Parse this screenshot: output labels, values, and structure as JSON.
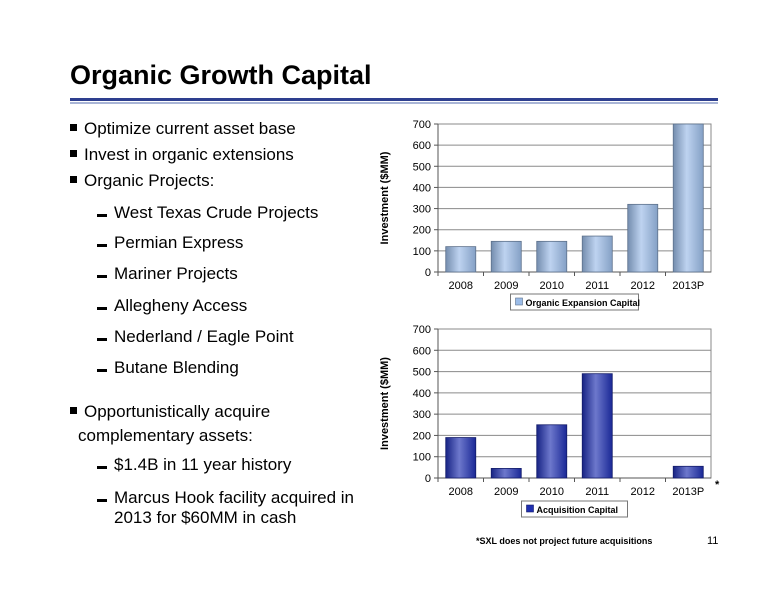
{
  "slide": {
    "title": "Organic Growth Capital",
    "page_number": "11",
    "footnote": "*SXL does not project future acquisitions"
  },
  "bullets": {
    "optimize": "Optimize current asset base",
    "invest": "Invest in organic extensions",
    "projects": "Organic Projects:",
    "projects_list": [
      "West Texas Crude Projects",
      "Permian Express",
      "Mariner Projects",
      "Allegheny Access",
      "Nederland / Eagle Point",
      "Butane Blending"
    ],
    "acquire_line1": "Opportunistically acquire",
    "acquire_line2": "complementary assets:",
    "history": "$1.4B in 11 year history",
    "marcus_line1": "Marcus Hook facility acquired in",
    "marcus_line2": "2013 for $60MM in cash"
  },
  "chart_data": [
    {
      "type": "bar",
      "categories": [
        "2008",
        "2009",
        "2010",
        "2011",
        "2012",
        "2013P"
      ],
      "series": [
        {
          "name": "Organic Expansion Capital",
          "values": [
            120,
            145,
            145,
            170,
            320,
            700
          ]
        }
      ],
      "ylabel": "Investment ($MM)",
      "ylim": [
        0,
        700
      ],
      "yticks": [
        "0",
        "100",
        "200",
        "300",
        "400",
        "500",
        "600",
        "700"
      ],
      "grid": true,
      "legend": "bottom",
      "color": "#9bbce8"
    },
    {
      "type": "bar",
      "categories": [
        "2008",
        "2009",
        "2010",
        "2011",
        "2012",
        "2013P"
      ],
      "series": [
        {
          "name": "Acquisition Capital",
          "values": [
            190,
            45,
            250,
            490,
            0,
            55
          ]
        }
      ],
      "ylabel": "Investment ($MM)",
      "ylim": [
        0,
        700
      ],
      "yticks": [
        "0",
        "100",
        "200",
        "300",
        "400",
        "500",
        "600",
        "700"
      ],
      "grid": true,
      "legend": "bottom",
      "color": "#1f2fb0",
      "annotation": "*"
    }
  ]
}
